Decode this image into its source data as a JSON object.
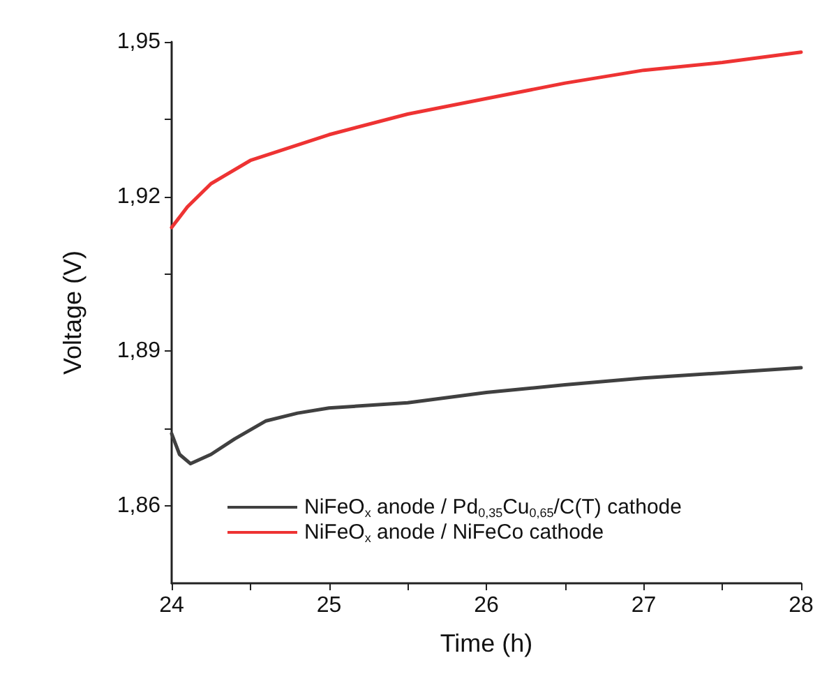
{
  "chart_data": {
    "type": "line",
    "xlabel": "Time (h)",
    "ylabel": "Voltage (V)",
    "xlim": [
      24,
      28
    ],
    "xticks": [
      24,
      {
        "value": 24.5,
        "label": null
      },
      25,
      {
        "value": 25.5,
        "label": null
      },
      26,
      {
        "value": 26.5,
        "label": null
      },
      27,
      {
        "value": 27.5,
        "label": null
      },
      28
    ],
    "ylim": [
      1.845,
      1.95
    ],
    "yticks": [
      {
        "value": 1.86,
        "label": "1,86"
      },
      {
        "value": 1.875,
        "label": null
      },
      {
        "value": 1.89,
        "label": "1,89"
      },
      {
        "value": 1.905,
        "label": null
      },
      {
        "value": 1.92,
        "label": "1,92"
      },
      {
        "value": 1.935,
        "label": null
      },
      {
        "value": 1.95,
        "label": "1,95"
      }
    ],
    "grid": false,
    "legend": "bottom",
    "marker": "none",
    "line_style": "solid",
    "series": [
      {
        "name": "NiFeO$_{x}$ anode / Pd$_{0,35}$Cu$_{0,65}$/C(T) cathode",
        "color": "#404040",
        "x": [
          24,
          24.05,
          24.12,
          24.25,
          24.4,
          24.6,
          24.8,
          25,
          25.5,
          26,
          26.5,
          27,
          27.5,
          28
        ],
        "values": [
          1.874,
          1.87,
          1.8682,
          1.87,
          1.873,
          1.8765,
          1.878,
          1.879,
          1.88,
          1.882,
          1.8835,
          1.8848,
          1.8858,
          1.8868
        ]
      },
      {
        "name": "NiFeO$_{x}$ anode / NiFeCo cathode",
        "color": "#ee3333",
        "x": [
          24,
          24.1,
          24.25,
          24.5,
          25,
          25.5,
          26,
          26.5,
          27,
          27.5,
          28
        ],
        "values": [
          1.914,
          1.918,
          1.9225,
          1.927,
          1.932,
          1.936,
          1.939,
          1.942,
          1.9445,
          1.946,
          1.948
        ]
      }
    ]
  }
}
